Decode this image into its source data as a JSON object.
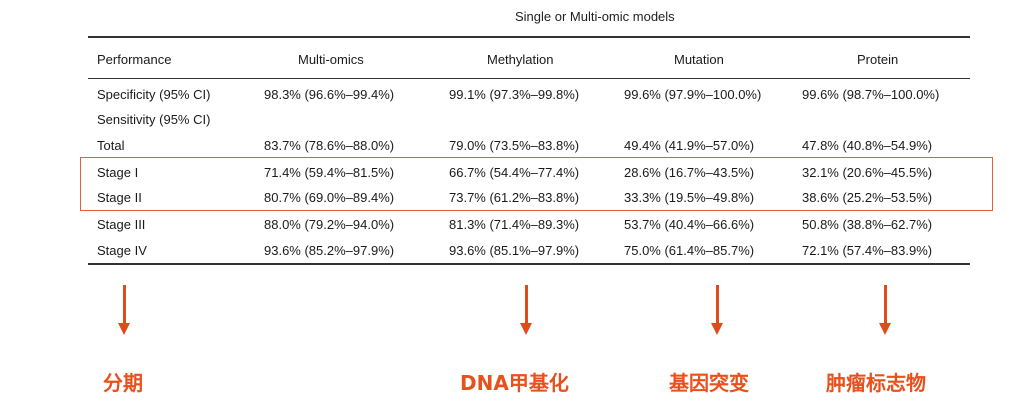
{
  "table": {
    "super_header": "Single or Multi-omic models",
    "columns": [
      "Performance",
      "Multi-omics",
      "Methylation",
      "Mutation",
      "Protein"
    ],
    "rows": [
      {
        "label": "Specificity (95% CI)",
        "values": [
          "98.3% (96.6%–99.4%)",
          "99.1% (97.3%–99.8%)",
          "99.6% (97.9%–100.0%)",
          "99.6% (98.7%–100.0%)"
        ]
      },
      {
        "label": "Sensitivity (95% CI)",
        "values": [
          "",
          "",
          "",
          ""
        ]
      },
      {
        "label": "Total",
        "values": [
          "83.7% (78.6%–88.0%)",
          "79.0% (73.5%–83.8%)",
          "49.4% (41.9%–57.0%)",
          "47.8% (40.8%–54.9%)"
        ]
      },
      {
        "label": "Stage I",
        "values": [
          "71.4% (59.4%–81.5%)",
          "66.7% (54.4%–77.4%)",
          "28.6% (16.7%–43.5%)",
          "32.1% (20.6%–45.5%)"
        ]
      },
      {
        "label": "Stage II",
        "values": [
          "80.7% (69.0%–89.4%)",
          "73.7% (61.2%–83.8%)",
          "33.3% (19.5%–49.8%)",
          "38.6% (25.2%–53.5%)"
        ]
      },
      {
        "label": "Stage III",
        "values": [
          "88.0% (79.2%–94.0%)",
          "81.3% (71.4%–89.3%)",
          "53.7% (40.4%–66.6%)",
          "50.8% (38.8%–62.7%)"
        ]
      },
      {
        "label": "Stage IV",
        "values": [
          "93.6% (85.2%–97.9%)",
          "93.6% (85.1%–97.9%)",
          "75.0% (61.4%–85.7%)",
          "72.1% (57.4%–83.9%)"
        ]
      }
    ]
  },
  "annotations": {
    "labels": [
      "分期",
      "DNA甲基化",
      "基因突变",
      "肿瘤标志物"
    ],
    "accent_color": "#e8501c",
    "highlight_color": "#e8602c"
  }
}
